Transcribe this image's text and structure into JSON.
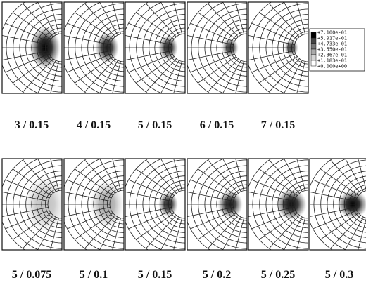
{
  "top_row": {
    "panels": [
      {
        "label": "3 / 0.15"
      },
      {
        "label": "4 / 0.15"
      },
      {
        "label": "5 / 0.15"
      },
      {
        "label": "6 / 0.15"
      },
      {
        "label": "7 / 0.15"
      }
    ]
  },
  "legend": {
    "labels": [
      "+7.100e-01",
      "+5.917e-01",
      "+4.733e-01",
      "+3.550e-01",
      "+2.367e-01",
      "+1.183e-01",
      "+0.000e+00"
    ]
  },
  "bottom_row": {
    "panels": [
      {
        "label": "5 / 0.075"
      },
      {
        "label": "5 / 0.1"
      },
      {
        "label": "5 / 0.15"
      },
      {
        "label": "5 / 0.2"
      },
      {
        "label": "5 / 0.25"
      },
      {
        "label": "5 / 0.3"
      }
    ]
  }
}
